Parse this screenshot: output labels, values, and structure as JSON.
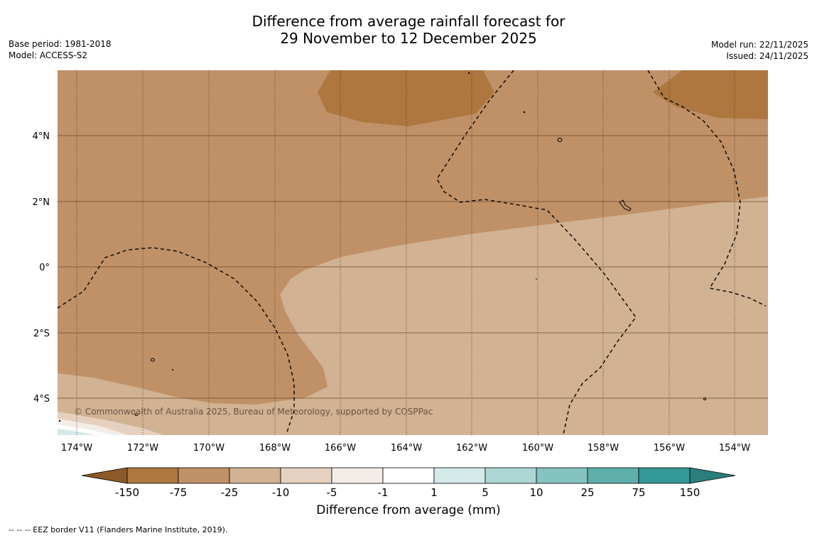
{
  "title": {
    "line1": "Difference from average rainfall forecast for",
    "line2": "29 November to 12 December 2025"
  },
  "meta_left": {
    "base_period": "Base period: 1981-2018",
    "model": "Model: ACCESS-S2"
  },
  "meta_right": {
    "model_run": "Model run: 22/11/2025",
    "issued": "Issued: 24/11/2025"
  },
  "map": {
    "copyright": "© Commonwealth of Australia 2025, Bureau of Meteorology, supported by COSPPac",
    "lat_labels": [
      "4°N",
      "2°N",
      "0°",
      "2°S",
      "4°S"
    ],
    "lon_labels": [
      "174°W",
      "172°W",
      "170°W",
      "168°W",
      "166°W",
      "164°W",
      "162°W",
      "160°W",
      "158°W",
      "156°W",
      "154°W"
    ]
  },
  "colorbar": {
    "ticks": [
      "-150",
      "-75",
      "-25",
      "-10",
      "-5",
      "-1",
      "1",
      "5",
      "10",
      "25",
      "75",
      "150"
    ],
    "colors": [
      "#ad773f",
      "#c09167",
      "#d1b293",
      "#e6d1c0",
      "#f3ede7",
      "#ffffff",
      "#d3eae8",
      "#abd6d4",
      "#84c3c0",
      "#5eaeab",
      "#339896"
    ],
    "end_low_color": "#8c5a28",
    "end_high_color": "#2a7f7d",
    "label": "Difference from average (mm)"
  },
  "footnote": "--  --  -- EEZ border V11 (Flanders Marine Institute, 2019)."
}
